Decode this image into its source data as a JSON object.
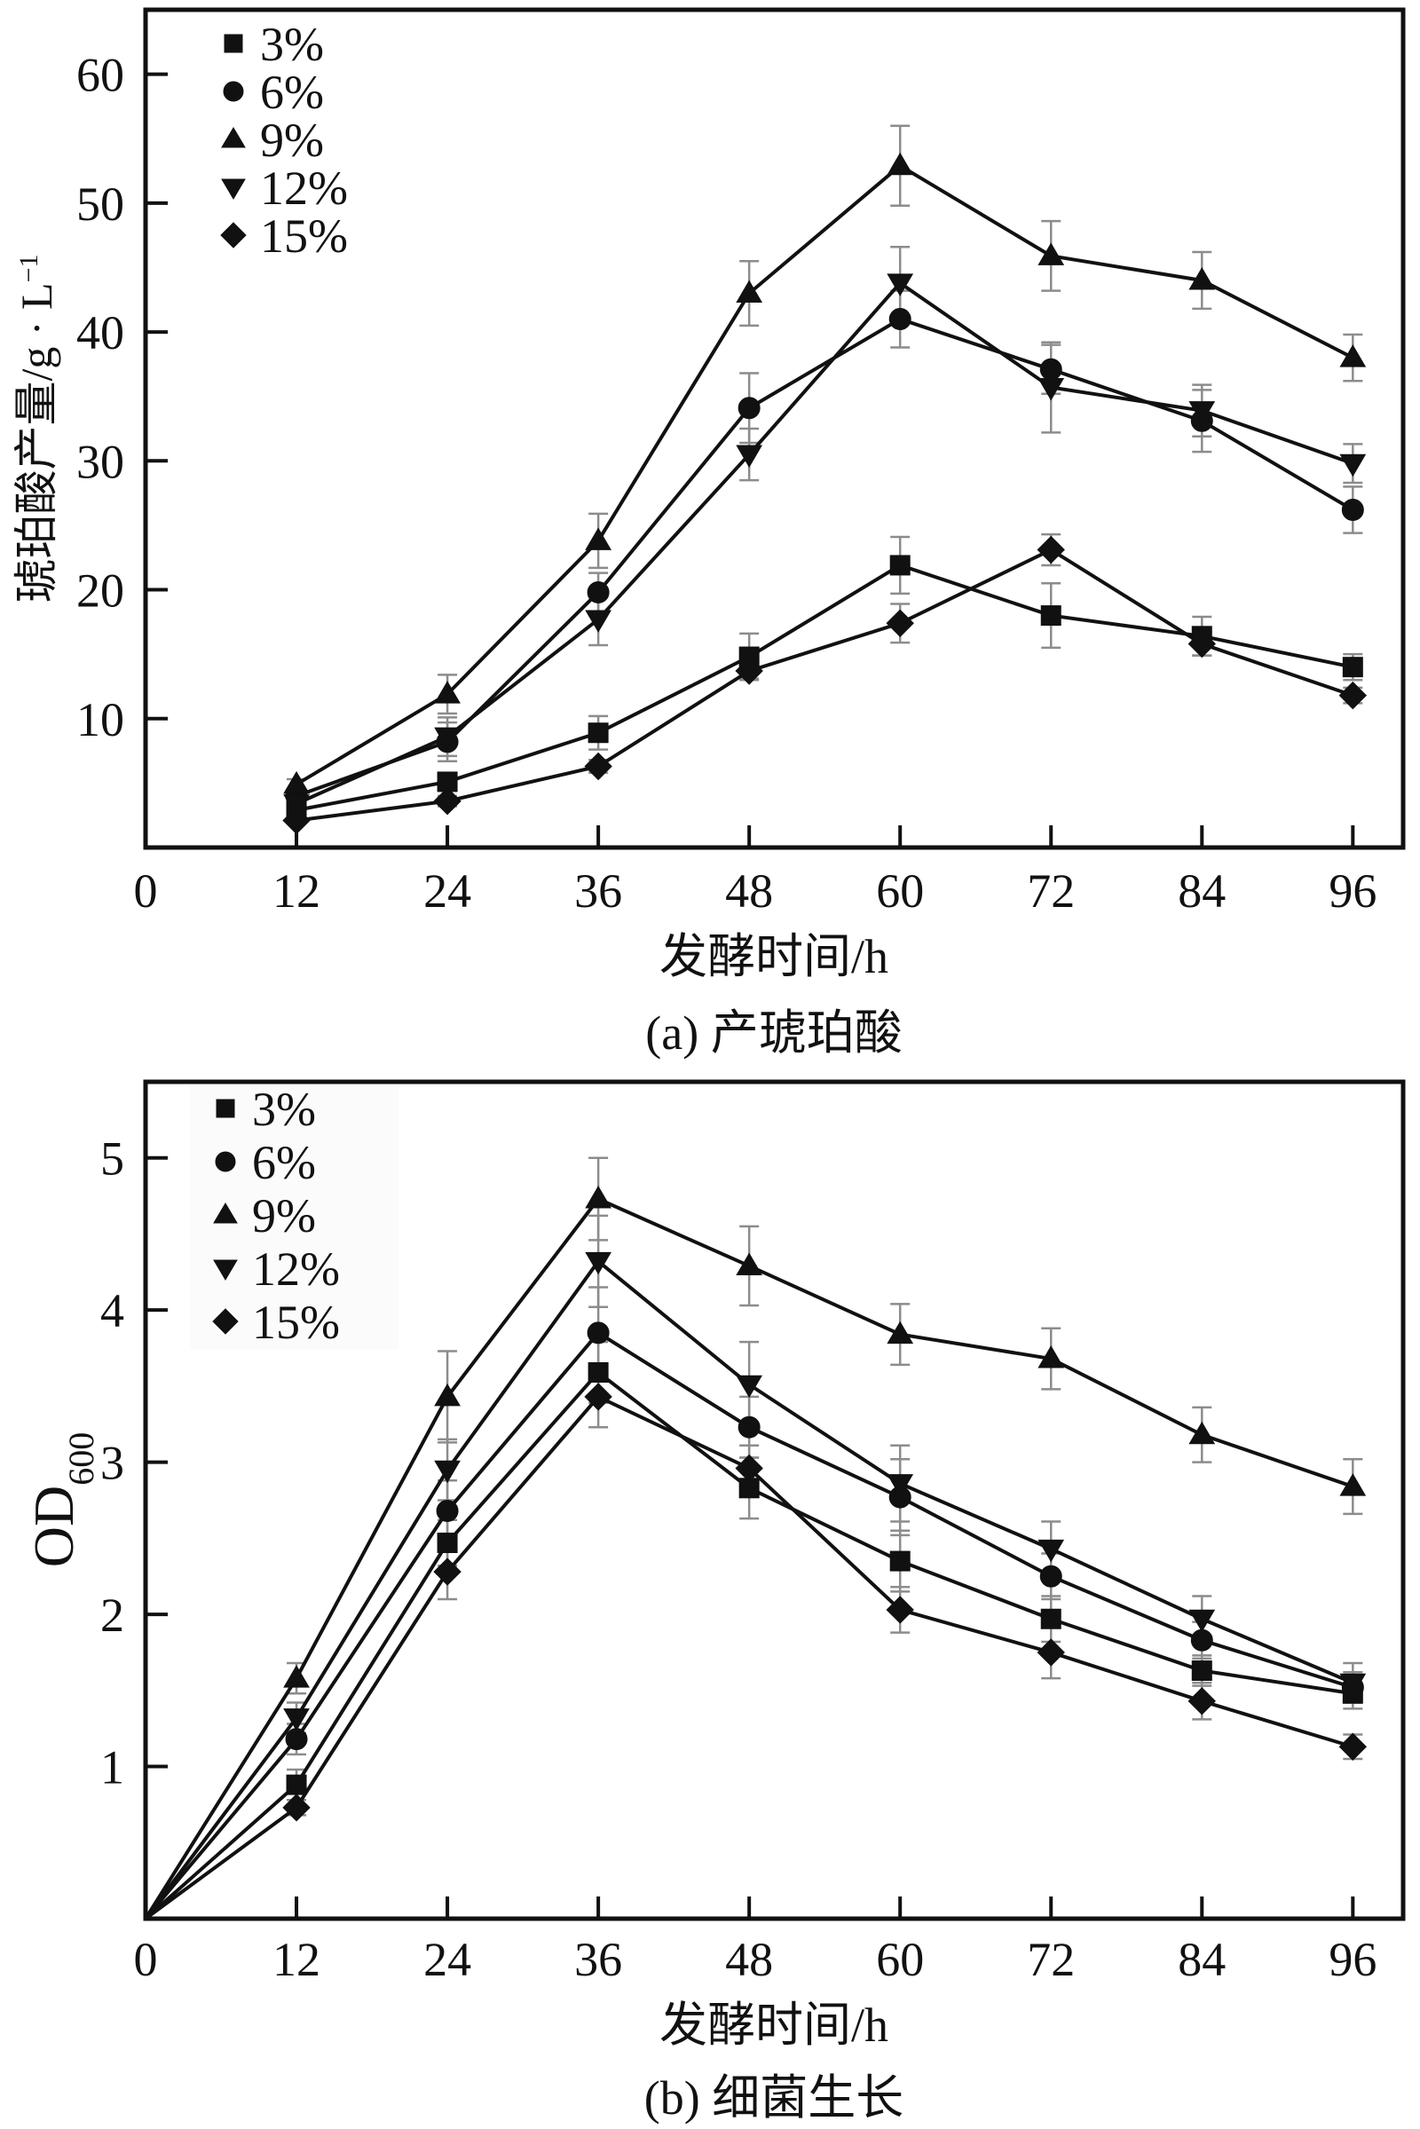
{
  "chart_data": [
    {
      "type": "line",
      "caption": "(a) 产琥珀酸",
      "title": "",
      "xlabel": "发酵时间/h",
      "ylabel": {
        "base": "琥珀酸产量/g · L",
        "superscript": "−1"
      },
      "xlim": [
        0,
        100
      ],
      "ylim": [
        0,
        65
      ],
      "x_ticks": [
        0,
        12,
        24,
        36,
        48,
        60,
        72,
        84,
        96
      ],
      "x_tick_labels": [
        "0",
        "12",
        "24",
        "36",
        "48",
        "60",
        "72",
        "84",
        "96"
      ],
      "y_ticks": [
        10,
        20,
        30,
        40,
        50,
        60
      ],
      "y_tick_labels": [
        "10",
        "20",
        "30",
        "40",
        "50",
        "60"
      ],
      "grid": false,
      "legend_position": "top-left",
      "error_bars": true,
      "x": [
        12,
        24,
        36,
        48,
        60,
        72,
        84,
        96
      ],
      "series": [
        {
          "name": "3%",
          "marker": "square",
          "values": [
            2.9,
            5.1,
            8.9,
            14.8,
            21.9,
            18.0,
            16.4,
            14.0
          ],
          "errors": [
            0.3,
            0.6,
            1.3,
            1.8,
            2.2,
            2.5,
            1.5,
            1.0
          ]
        },
        {
          "name": "6%",
          "marker": "circle",
          "values": [
            4.0,
            8.2,
            19.8,
            34.1,
            41.0,
            37.1,
            33.1,
            26.2
          ],
          "errors": [
            0.3,
            1.5,
            1.5,
            2.7,
            2.2,
            1.9,
            2.4,
            1.8
          ]
        },
        {
          "name": "9%",
          "marker": "triangle-up",
          "values": [
            4.9,
            11.9,
            23.8,
            43.0,
            52.9,
            45.9,
            44.0,
            38.0
          ],
          "errors": [
            0.4,
            1.5,
            2.1,
            2.5,
            3.1,
            2.7,
            2.2,
            1.8
          ]
        },
        {
          "name": "12%",
          "marker": "triangle-down",
          "values": [
            3.4,
            8.6,
            17.7,
            30.5,
            43.8,
            35.7,
            33.9,
            29.8
          ],
          "errors": [
            0.3,
            1.5,
            2.0,
            2.0,
            2.8,
            3.5,
            2.0,
            1.5
          ]
        },
        {
          "name": "15%",
          "marker": "diamond",
          "values": [
            2.1,
            3.6,
            6.3,
            13.7,
            17.4,
            23.1,
            15.8,
            11.8
          ],
          "errors": [
            0.2,
            0.4,
            0.5,
            0.6,
            1.5,
            1.2,
            0.9,
            0.6
          ]
        }
      ]
    },
    {
      "type": "line",
      "caption": "(b) 细菌生长",
      "title": "",
      "xlabel": "发酵时间/h",
      "ylabel": {
        "base": "OD",
        "subscript": "600"
      },
      "xlim": [
        0,
        100
      ],
      "ylim": [
        0,
        5.5
      ],
      "x_ticks": [
        0,
        12,
        24,
        36,
        48,
        60,
        72,
        84,
        96
      ],
      "x_tick_labels": [
        "0",
        "12",
        "24",
        "36",
        "48",
        "60",
        "72",
        "84",
        "96"
      ],
      "y_ticks": [
        1,
        2,
        3,
        4,
        5
      ],
      "y_tick_labels": [
        "1",
        "2",
        "3",
        "4",
        "5"
      ],
      "grid": false,
      "legend_position": "top-left",
      "error_bars": true,
      "x": [
        0,
        12,
        24,
        36,
        48,
        60,
        72,
        84,
        96
      ],
      "series": [
        {
          "name": "3%",
          "marker": "square",
          "values": [
            0,
            0.88,
            2.47,
            3.59,
            2.83,
            2.35,
            1.97,
            1.63,
            1.48
          ],
          "errors": [
            0,
            0.1,
            0.15,
            0.2,
            0.2,
            0.2,
            0.15,
            0.1,
            0.1
          ]
        },
        {
          "name": "6%",
          "marker": "circle",
          "values": [
            0,
            1.18,
            2.68,
            3.85,
            3.23,
            2.77,
            2.25,
            1.83,
            1.52
          ],
          "errors": [
            0,
            0.1,
            0.2,
            0.3,
            0.2,
            0.25,
            0.15,
            0.12,
            0.1
          ]
        },
        {
          "name": "9%",
          "marker": "triangle-up",
          "values": [
            0,
            1.58,
            3.43,
            4.73,
            4.29,
            3.84,
            3.68,
            3.18,
            2.84
          ],
          "errors": [
            0,
            0.1,
            0.3,
            0.27,
            0.26,
            0.2,
            0.2,
            0.18,
            0.18
          ]
        },
        {
          "name": "12%",
          "marker": "triangle-down",
          "values": [
            0,
            1.32,
            2.95,
            4.32,
            3.51,
            2.86,
            2.43,
            1.97,
            1.55
          ],
          "errors": [
            0,
            0.1,
            0.2,
            0.3,
            0.28,
            0.25,
            0.18,
            0.15,
            0.13
          ]
        },
        {
          "name": "15%",
          "marker": "diamond",
          "values": [
            0,
            0.73,
            2.28,
            3.43,
            2.96,
            2.03,
            1.75,
            1.43,
            1.13
          ],
          "errors": [
            0,
            0.05,
            0.18,
            0.2,
            0.15,
            0.15,
            0.17,
            0.12,
            0.08
          ]
        }
      ]
    }
  ]
}
